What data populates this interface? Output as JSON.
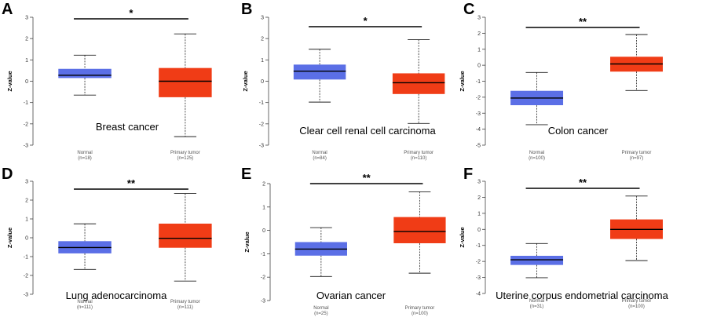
{
  "colors": {
    "normal": "#5b6fe6",
    "tumor": "#f03c16",
    "median": "#000000",
    "axis": "#444444",
    "sig": "#000000"
  },
  "chart_data": [
    {
      "panel": "A",
      "type": "box",
      "title": "Breast cancer",
      "ylabel": "Z-value",
      "ylim": [
        -3,
        3
      ],
      "yticks": [
        -3,
        -2,
        -1,
        0,
        1,
        2,
        3
      ],
      "significance": "*",
      "groups": [
        {
          "name": "Normal",
          "n": "(n=18)",
          "min": -0.65,
          "q1": 0.15,
          "median": 0.28,
          "q3": 0.58,
          "max": 1.22
        },
        {
          "name": "Primary tumor",
          "n": "(n=125)",
          "min": -2.6,
          "q1": -0.75,
          "median": 0.0,
          "q3": 0.62,
          "max": 2.22
        }
      ]
    },
    {
      "panel": "B",
      "type": "box",
      "title": "Clear cell renal cell carcinoma",
      "ylabel": "Z-value",
      "ylim": [
        -3,
        3
      ],
      "yticks": [
        -3,
        -2,
        -1,
        0,
        1,
        2,
        3
      ],
      "significance": "*",
      "groups": [
        {
          "name": "Normal",
          "n": "(n=84)",
          "min": -0.98,
          "q1": 0.08,
          "median": 0.47,
          "q3": 0.78,
          "max": 1.5
        },
        {
          "name": "Primary tumor",
          "n": "(n=110)",
          "min": -1.98,
          "q1": -0.6,
          "median": -0.07,
          "q3": 0.37,
          "max": 1.95
        }
      ]
    },
    {
      "panel": "C",
      "type": "box",
      "title": "Colon cancer",
      "ylabel": "Z-value",
      "ylim": [
        -5,
        3
      ],
      "yticks": [
        -5,
        -4,
        -3,
        -2,
        -1,
        0,
        1,
        2,
        3
      ],
      "significance": "**",
      "groups": [
        {
          "name": "Normal",
          "n": "(n=100)",
          "min": -3.72,
          "q1": -2.5,
          "median": -2.05,
          "q3": -1.6,
          "max": -0.45
        },
        {
          "name": "Primary tumor",
          "n": "(n=97)",
          "min": -1.58,
          "q1": -0.4,
          "median": 0.08,
          "q3": 0.53,
          "max": 1.92
        }
      ]
    },
    {
      "panel": "D",
      "type": "box",
      "title": "Lung adenocarcinoma",
      "ylabel": "Z-value",
      "ylim": [
        -3,
        3
      ],
      "yticks": [
        -3,
        -2,
        -1,
        0,
        1,
        2,
        3
      ],
      "significance": "**",
      "groups": [
        {
          "name": "Normal",
          "n": "(n=111)",
          "min": -1.68,
          "q1": -0.83,
          "median": -0.52,
          "q3": -0.18,
          "max": 0.74
        },
        {
          "name": "Primary tumor",
          "n": "(n=111)",
          "min": -2.3,
          "q1": -0.53,
          "median": -0.03,
          "q3": 0.75,
          "max": 2.35
        }
      ]
    },
    {
      "panel": "E",
      "type": "box",
      "title": "Ovarian cancer",
      "ylabel": "Z-value",
      "ylim": [
        -3,
        2
      ],
      "yticks": [
        -3,
        -2,
        -1,
        0,
        1,
        2
      ],
      "significance": "**",
      "groups": [
        {
          "name": "Normal",
          "n": "(n=25)",
          "min": -1.97,
          "q1": -1.08,
          "median": -0.8,
          "q3": -0.5,
          "max": 0.12
        },
        {
          "name": "Primary tumor",
          "n": "(n=100)",
          "min": -1.83,
          "q1": -0.55,
          "median": -0.05,
          "q3": 0.57,
          "max": 1.65
        }
      ]
    },
    {
      "panel": "F",
      "type": "box",
      "title": "Uterine corpus endometrial carcinoma",
      "ylabel": "Z-value",
      "ylim": [
        -4,
        3
      ],
      "yticks": [
        -4,
        -3,
        -2,
        -1,
        0,
        1,
        2,
        3
      ],
      "significance": "**",
      "groups": [
        {
          "name": "Normal",
          "n": "(n=31)",
          "min": -3.02,
          "q1": -2.22,
          "median": -1.9,
          "q3": -1.65,
          "max": -0.88
        },
        {
          "name": "Primary tumor",
          "n": "(n=100)",
          "min": -1.95,
          "q1": -0.6,
          "median": 0.0,
          "q3": 0.62,
          "max": 2.08
        }
      ]
    }
  ]
}
